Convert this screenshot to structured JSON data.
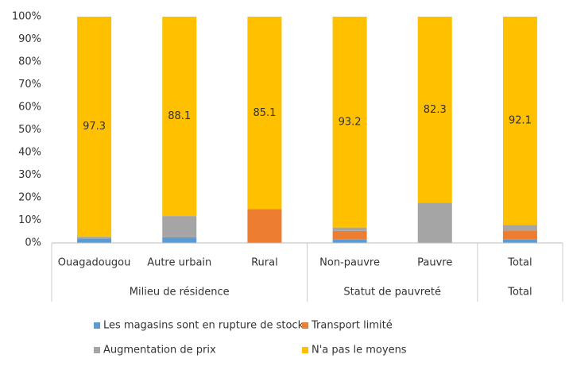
{
  "chart_data": {
    "type": "stacked_bar",
    "categories": [
      "Ouagadougou",
      "Autre urbain",
      "Rural",
      "Non-pauvre",
      "Pauvre",
      "Total"
    ],
    "groups": [
      "Milieu de résidence",
      "Statut de pauvreté",
      "Total"
    ],
    "series": [
      {
        "name": "Les magasins sont en rupture de stock",
        "color": "#5b9bd5",
        "values": [
          2.0,
          2.5,
          0,
          1.5,
          0,
          1.5
        ]
      },
      {
        "name": "Transport limité",
        "color": "#ed7d31",
        "values": [
          0,
          0,
          14.9,
          3.8,
          0,
          4.0
        ]
      },
      {
        "name": "Augmentation de prix",
        "color": "#a5a5a5",
        "values": [
          0.7,
          9.4,
          0,
          1.5,
          17.7,
          2.4
        ]
      },
      {
        "name": "N'a pas le moyens",
        "color": "#ffc000",
        "values": [
          97.3,
          88.1,
          85.1,
          93.2,
          82.3,
          92.1
        ],
        "show_labels": true
      }
    ],
    "ylim": [
      0,
      100
    ],
    "yticks": [
      {
        "value": 0,
        "label": "0%"
      },
      {
        "value": 10,
        "label": "10%"
      },
      {
        "value": 20,
        "label": "20%"
      },
      {
        "value": 30,
        "label": "30%"
      },
      {
        "value": 40,
        "label": "40%"
      },
      {
        "value": 50,
        "label": "50%"
      },
      {
        "value": 60,
        "label": "60%"
      },
      {
        "value": 70,
        "label": "70%"
      },
      {
        "value": 80,
        "label": "80%"
      },
      {
        "value": 90,
        "label": "90%"
      },
      {
        "value": 100,
        "label": "100%"
      }
    ],
    "grid": false
  }
}
